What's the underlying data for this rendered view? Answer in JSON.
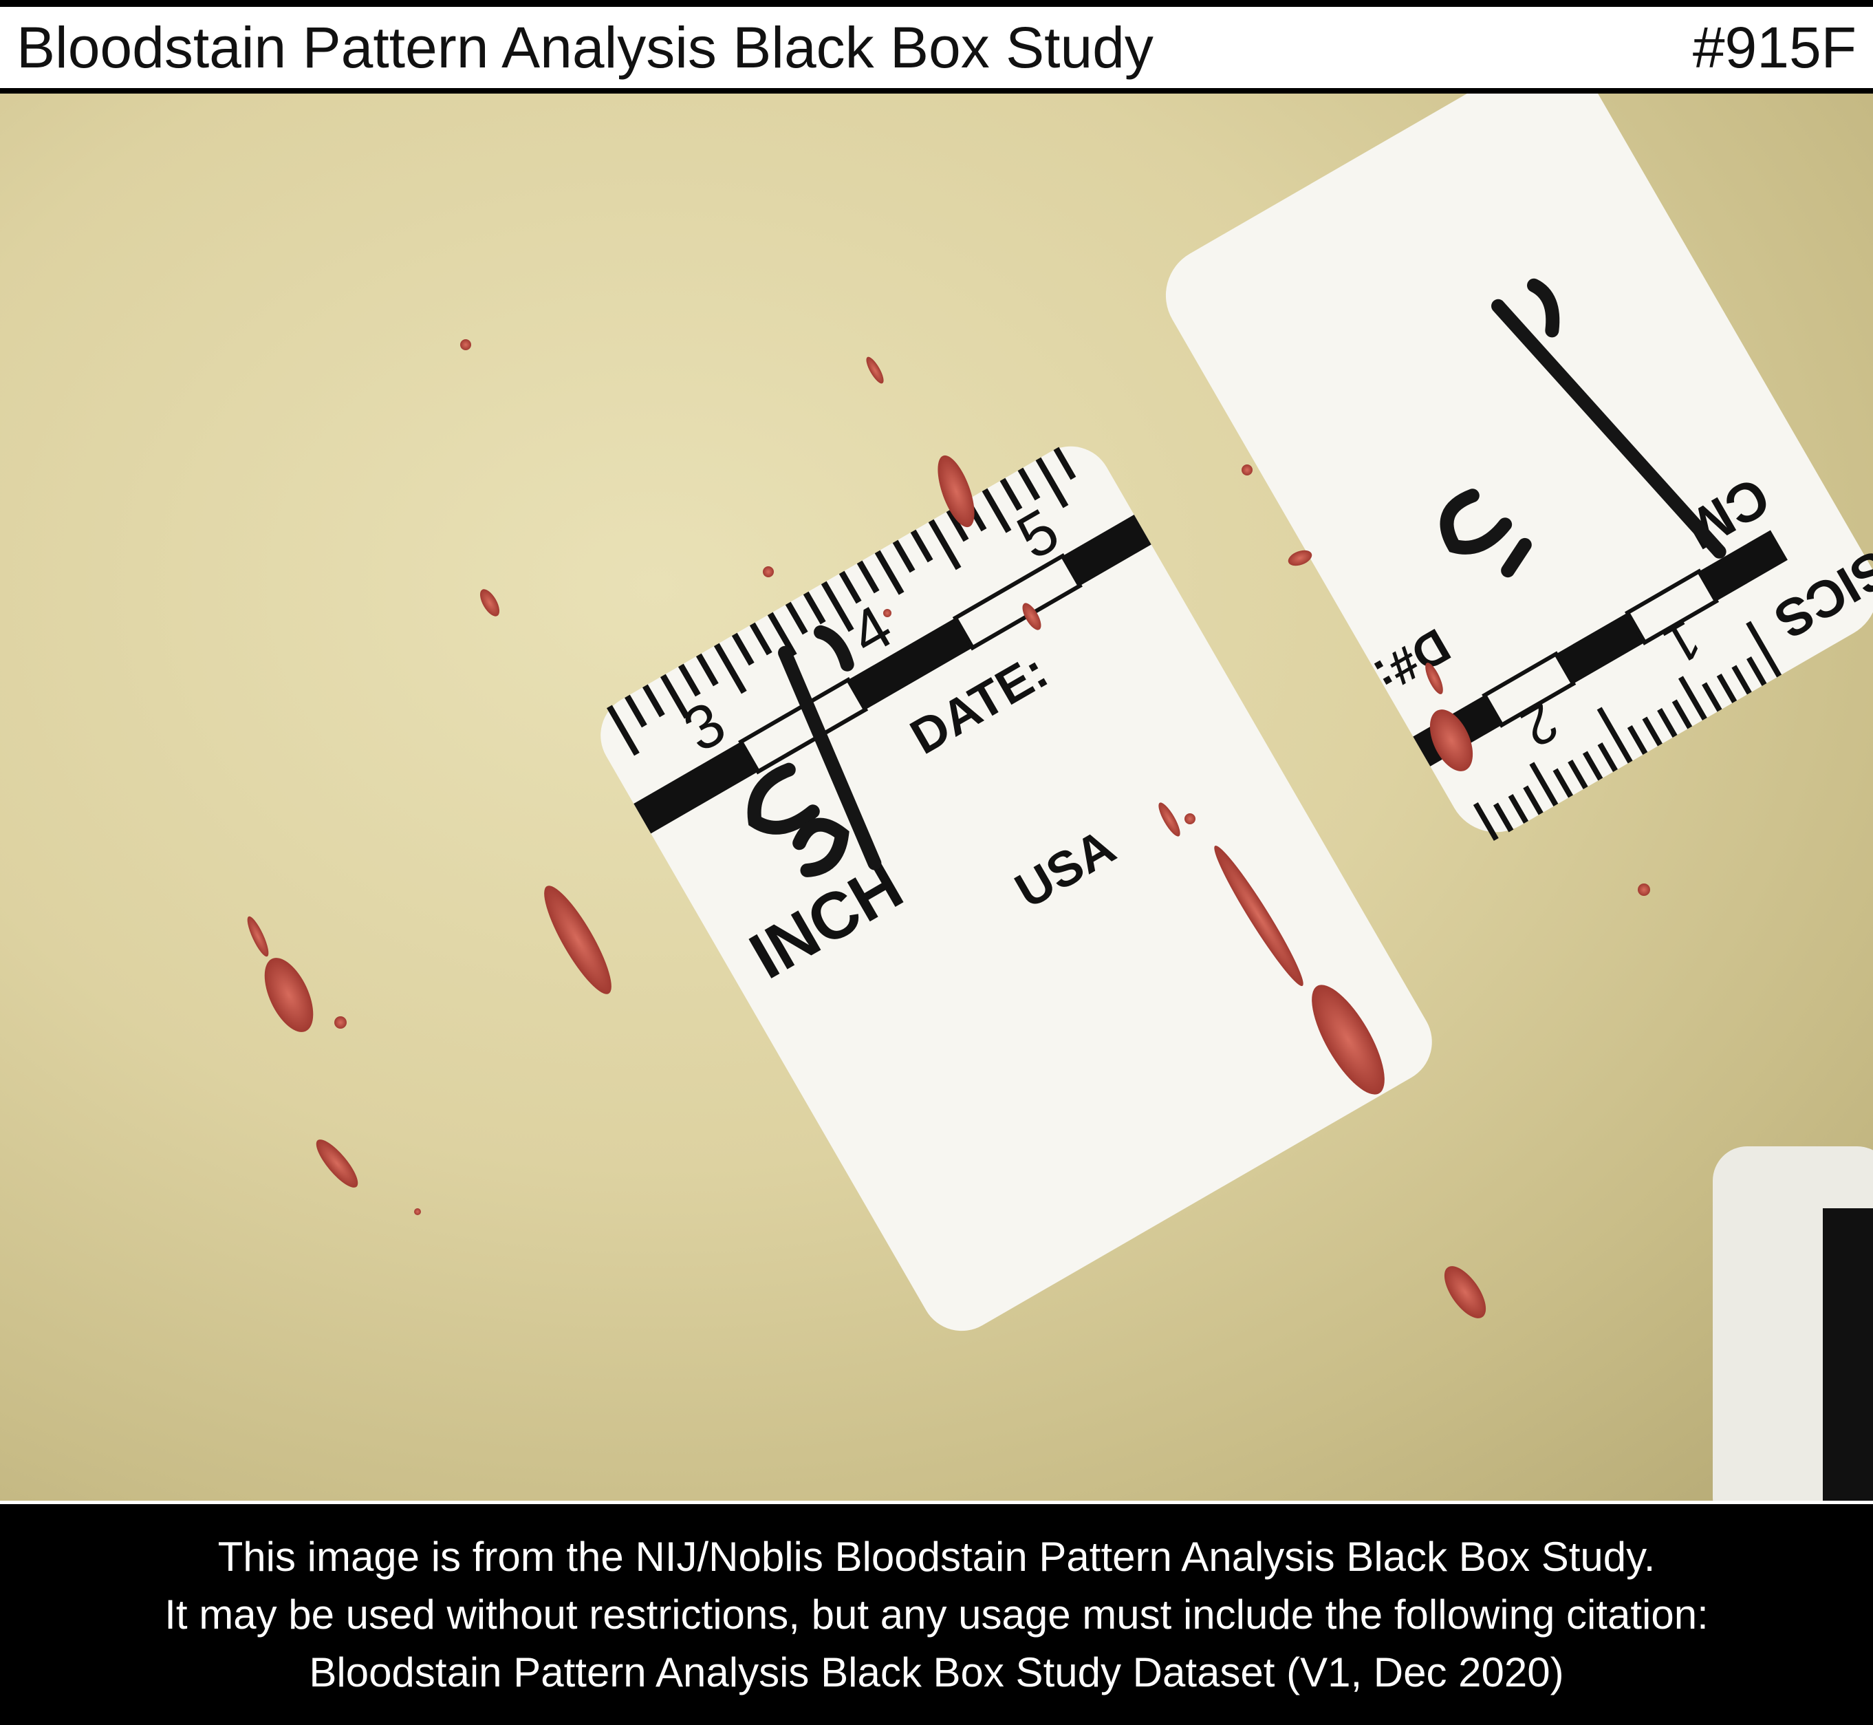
{
  "header": {
    "title": "Bloodstain Pattern Analysis Black Box Study",
    "plate_id": "#915F"
  },
  "scale_large": {
    "numbers": [
      "3",
      "4",
      "5"
    ],
    "unit": "INCH",
    "date_label": "DATE:",
    "country": "USA",
    "marker": "F3"
  },
  "scale_small": {
    "numbers": [
      "2",
      "1"
    ],
    "unit": "CM",
    "id_label": "D#:",
    "brand_fragment": "SICS",
    "marker": "F1"
  },
  "footer": {
    "line1": "This image is from the NIJ/Noblis Bloodstain Pattern Analysis Black Box Study.",
    "line2": "It may be used without restrictions, but any usage must include the following citation:",
    "line3": "Bloodstain Pattern Analysis Black Box Study Dataset (V1, Dec 2020)"
  },
  "colors": {
    "surface": "#ddd2a1",
    "stain": "#b84a3f",
    "scale_card": "#f7f6f1",
    "ink": "#111111"
  }
}
